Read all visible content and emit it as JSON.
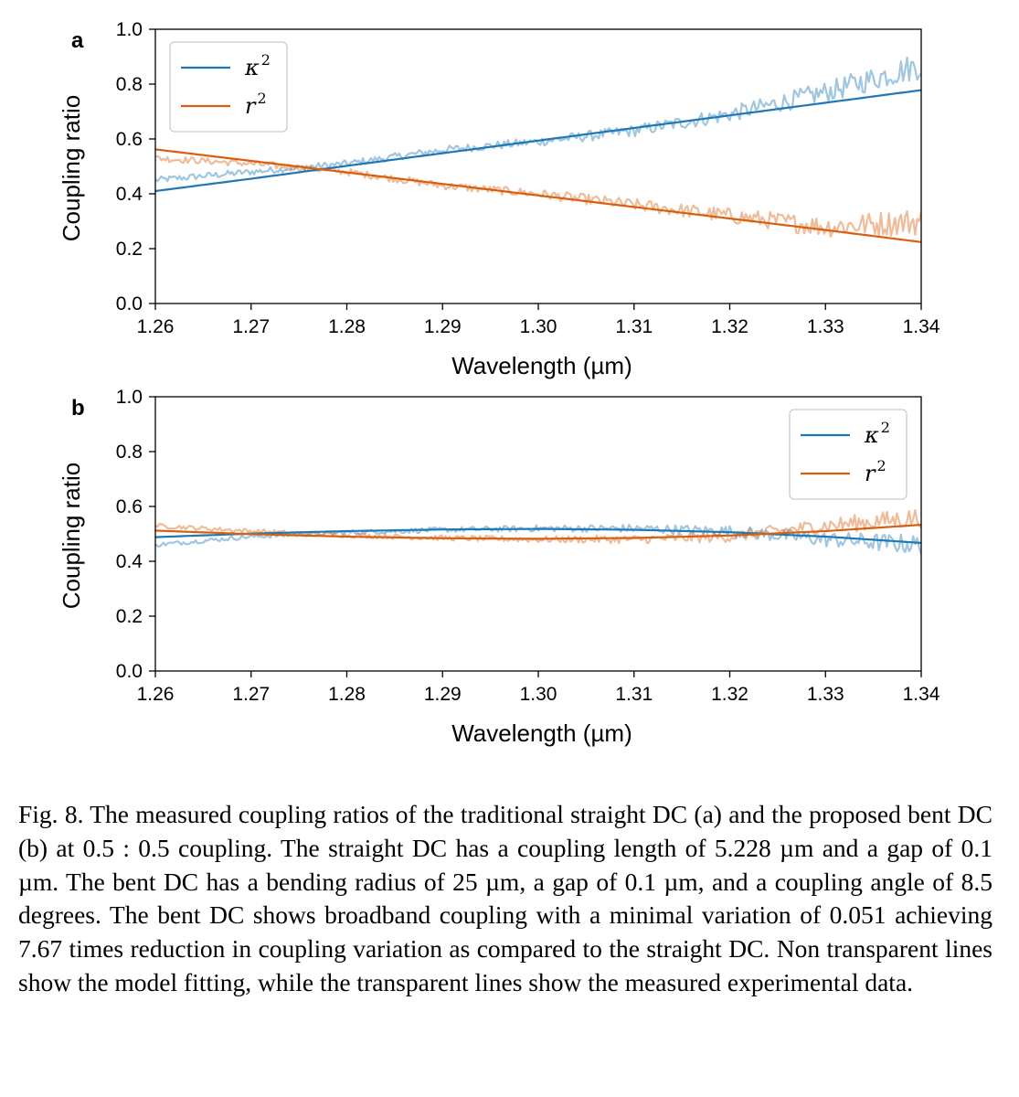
{
  "figure": {
    "caption": "Fig. 8.  The measured coupling ratios of the traditional straight DC (a) and the proposed bent DC (b) at 0.5 : 0.5 coupling. The straight DC has a coupling length of 5.228 µm and a gap of 0.1 µm. The bent DC has a bending radius of 25 µm, a gap of 0.1 µm, and a coupling angle of 8.5 degrees. The bent DC shows broadband coupling with a minimal variation of 0.051 achieving 7.67 times reduction in coupling variation as compared to the straight DC. Non transparent lines show the model fitting, while the transparent lines show the measured experimental data."
  },
  "chart_data": [
    {
      "type": "line",
      "panel_label": "a",
      "xlabel": "Wavelength (µm)",
      "ylabel": "Coupling ratio",
      "xlim": [
        1.26,
        1.34
      ],
      "ylim": [
        0.0,
        1.0
      ],
      "x_ticks": [
        "1.26",
        "1.27",
        "1.28",
        "1.29",
        "1.30",
        "1.31",
        "1.32",
        "1.33",
        "1.34"
      ],
      "y_ticks": [
        "0.0",
        "0.2",
        "0.4",
        "0.6",
        "0.8",
        "1.0"
      ],
      "grid": false,
      "legend_position": "top-left",
      "colors": {
        "kappa": "#1f77b4",
        "r": "#d95f0e"
      },
      "x": [
        1.26,
        1.27,
        1.28,
        1.29,
        1.3,
        1.31,
        1.32,
        1.33,
        1.34
      ],
      "series": [
        {
          "name": "κ²",
          "legend_base": "κ",
          "legend_sup": "2",
          "kind": "fit",
          "color_key": "kappa",
          "values": [
            0.41,
            0.455,
            0.502,
            0.548,
            0.594,
            0.64,
            0.686,
            0.732,
            0.778
          ]
        },
        {
          "name": "r²",
          "legend_base": "r",
          "legend_sup": "2",
          "kind": "fit",
          "color_key": "r",
          "values": [
            0.562,
            0.52,
            0.478,
            0.436,
            0.394,
            0.352,
            0.31,
            0.268,
            0.224
          ]
        },
        {
          "name": "κ² measured",
          "kind": "measured",
          "color_key": "kappa",
          "values": [
            0.45,
            0.48,
            0.51,
            0.56,
            0.59,
            0.63,
            0.69,
            0.77,
            0.87
          ]
        },
        {
          "name": "r² measured",
          "kind": "measured",
          "color_key": "r",
          "values": [
            0.53,
            0.51,
            0.48,
            0.43,
            0.4,
            0.36,
            0.32,
            0.28,
            0.3
          ]
        }
      ]
    },
    {
      "type": "line",
      "panel_label": "b",
      "xlabel": "Wavelength (µm)",
      "ylabel": "Coupling ratio",
      "xlim": [
        1.26,
        1.34
      ],
      "ylim": [
        0.0,
        1.0
      ],
      "x_ticks": [
        "1.26",
        "1.27",
        "1.28",
        "1.29",
        "1.30",
        "1.31",
        "1.32",
        "1.33",
        "1.34"
      ],
      "y_ticks": [
        "0.0",
        "0.2",
        "0.4",
        "0.6",
        "0.8",
        "1.0"
      ],
      "grid": false,
      "legend_position": "top-right",
      "colors": {
        "kappa": "#1f77b4",
        "r": "#d95f0e"
      },
      "x": [
        1.26,
        1.27,
        1.28,
        1.29,
        1.3,
        1.31,
        1.32,
        1.33,
        1.34
      ],
      "series": [
        {
          "name": "κ²",
          "legend_base": "κ",
          "legend_sup": "2",
          "kind": "fit",
          "color_key": "kappa",
          "values": [
            0.488,
            0.501,
            0.51,
            0.516,
            0.518,
            0.515,
            0.506,
            0.49,
            0.467
          ]
        },
        {
          "name": "r²",
          "legend_base": "r",
          "legend_sup": "2",
          "kind": "fit",
          "color_key": "r",
          "values": [
            0.512,
            0.499,
            0.49,
            0.484,
            0.482,
            0.485,
            0.494,
            0.51,
            0.533
          ]
        },
        {
          "name": "κ² measured",
          "kind": "measured",
          "color_key": "kappa",
          "values": [
            0.46,
            0.49,
            0.505,
            0.515,
            0.52,
            0.52,
            0.51,
            0.48,
            0.46
          ]
        },
        {
          "name": "r² measured",
          "kind": "measured",
          "color_key": "r",
          "values": [
            0.53,
            0.51,
            0.495,
            0.485,
            0.48,
            0.48,
            0.49,
            0.53,
            0.56
          ]
        }
      ]
    }
  ]
}
